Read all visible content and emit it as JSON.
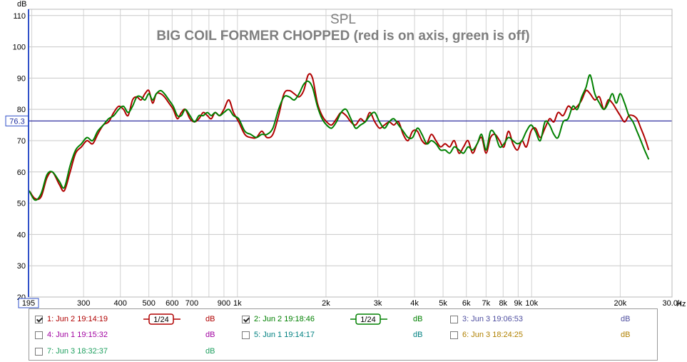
{
  "chart_data": {
    "type": "line",
    "title": "SPL",
    "subtitle": "BIG COIL FORMER CHOPPED (red is on axis, green is off)",
    "ylabel": "dB",
    "xlabel": "Hz",
    "x_scale": "log",
    "xlim": [
      195,
      30000
    ],
    "ylim": [
      20,
      112
    ],
    "grid": true,
    "y_ticks": [
      20,
      30,
      40,
      50,
      60,
      70,
      80,
      90,
      100,
      110
    ],
    "x_ticks": [
      {
        "value": 195,
        "label": "195"
      },
      {
        "value": 300,
        "label": "300"
      },
      {
        "value": 400,
        "label": "400"
      },
      {
        "value": 500,
        "label": "500"
      },
      {
        "value": 600,
        "label": "600"
      },
      {
        "value": 700,
        "label": "700"
      },
      {
        "value": 900,
        "label": "900"
      },
      {
        "value": 1000,
        "label": "1k"
      },
      {
        "value": 2000,
        "label": "2k"
      },
      {
        "value": 3000,
        "label": "3k"
      },
      {
        "value": 4000,
        "label": "4k"
      },
      {
        "value": 5000,
        "label": "5k"
      },
      {
        "value": 6000,
        "label": "6k"
      },
      {
        "value": 7000,
        "label": "7k"
      },
      {
        "value": 8000,
        "label": "8k"
      },
      {
        "value": 9000,
        "label": "9k"
      },
      {
        "value": 10000,
        "label": "10k"
      },
      {
        "value": 20000,
        "label": "20k"
      },
      {
        "value": 30000,
        "label": "30.0k"
      }
    ],
    "reference_line": {
      "value": 76.3,
      "label": "76.3",
      "color": "#00008b"
    },
    "series": [
      {
        "name": "1: Jun 2 19:14:19",
        "color": "#b00000",
        "x": [
          196,
          205,
          215,
          225,
          235,
          248,
          258,
          270,
          282,
          295,
          308,
          322,
          335,
          350,
          365,
          380,
          395,
          410,
          425,
          440,
          455,
          470,
          485,
          500,
          515,
          530,
          548,
          565,
          585,
          605,
          625,
          645,
          665,
          690,
          715,
          740,
          765,
          790,
          815,
          840,
          870,
          900,
          935,
          970,
          1010,
          1060,
          1110,
          1160,
          1210,
          1260,
          1320,
          1380,
          1440,
          1500,
          1560,
          1620,
          1680,
          1740,
          1800,
          1870,
          1940,
          2010,
          2090,
          2170,
          2250,
          2340,
          2430,
          2520,
          2620,
          2720,
          2820,
          2930,
          3040,
          3160,
          3280,
          3400,
          3530,
          3660,
          3800,
          3940,
          4090,
          4240,
          4400,
          4560,
          4730,
          4900,
          5080,
          5270,
          5460,
          5660,
          5870,
          6080,
          6300,
          6530,
          6760,
          7000,
          7250,
          7510,
          7780,
          8050,
          8340,
          8640,
          8950,
          9270,
          9600,
          9950,
          10300,
          10700,
          11100,
          11500,
          11900,
          12300,
          12800,
          13300,
          13800,
          14300,
          14800,
          15300,
          15800,
          16400,
          17000,
          17600,
          18200,
          18800,
          19400,
          20000,
          20700,
          21400,
          22100,
          22800,
          23500,
          24200,
          25000
        ],
        "y": [
          54,
          51.5,
          52,
          58,
          60,
          56,
          54,
          60,
          66,
          68,
          70,
          69,
          72,
          75,
          76,
          79,
          81,
          80,
          78,
          83,
          84,
          83,
          85,
          86,
          82,
          85,
          85,
          84,
          82,
          80,
          77,
          79,
          80,
          77,
          76,
          77,
          79,
          78,
          77,
          79,
          78,
          80,
          83,
          79,
          76,
          72,
          71,
          71,
          73,
          71,
          72,
          78,
          85,
          86,
          85,
          84,
          86,
          91,
          90,
          82,
          78,
          76,
          75,
          77,
          79,
          78,
          76,
          75,
          77,
          76,
          79,
          76,
          74,
          75,
          76,
          75,
          76,
          72,
          70,
          73,
          73,
          70,
          69,
          72,
          70,
          68,
          69,
          68,
          70,
          66,
          68,
          70,
          66,
          69,
          71,
          66,
          71,
          72,
          70,
          68,
          73,
          69,
          67,
          70,
          68,
          73,
          74,
          71,
          74,
          77,
          76,
          79,
          78,
          81,
          80,
          81,
          83,
          86,
          85,
          83,
          84,
          80,
          83,
          82,
          80,
          78,
          76,
          78,
          78,
          77,
          74,
          71,
          67
        ]
      },
      {
        "name": "2: Jun 2 19:18:46",
        "color": "#008000",
        "x": [
          196,
          205,
          215,
          225,
          235,
          248,
          258,
          270,
          282,
          295,
          308,
          322,
          335,
          350,
          365,
          380,
          395,
          410,
          425,
          440,
          455,
          470,
          485,
          500,
          515,
          530,
          548,
          565,
          585,
          605,
          625,
          645,
          665,
          690,
          715,
          740,
          765,
          790,
          815,
          840,
          870,
          900,
          935,
          970,
          1010,
          1060,
          1110,
          1160,
          1210,
          1260,
          1320,
          1380,
          1440,
          1500,
          1560,
          1620,
          1680,
          1740,
          1800,
          1870,
          1940,
          2010,
          2090,
          2170,
          2250,
          2340,
          2430,
          2520,
          2620,
          2720,
          2820,
          2930,
          3040,
          3160,
          3280,
          3400,
          3530,
          3660,
          3800,
          3940,
          4090,
          4240,
          4400,
          4560,
          4730,
          4900,
          5080,
          5270,
          5460,
          5660,
          5870,
          6080,
          6300,
          6530,
          6760,
          7000,
          7250,
          7510,
          7780,
          8050,
          8340,
          8640,
          8950,
          9270,
          9600,
          9950,
          10300,
          10700,
          11100,
          11500,
          11900,
          12300,
          12800,
          13300,
          13800,
          14300,
          14800,
          15300,
          15800,
          16400,
          17000,
          17600,
          18200,
          18800,
          19400,
          20000,
          20700,
          21400,
          22100,
          22800,
          23500,
          24200,
          25000
        ],
        "y": [
          54,
          51,
          53,
          59,
          60,
          57,
          55,
          62,
          67,
          69,
          71,
          70,
          73,
          75,
          77,
          78,
          80,
          81,
          79,
          81,
          84,
          84,
          83,
          85,
          83,
          85,
          86,
          85,
          83,
          81,
          78,
          78,
          80,
          78,
          76,
          78,
          78,
          79,
          78,
          79,
          78,
          79,
          80,
          78,
          77,
          73,
          72,
          71,
          72,
          72,
          74,
          80,
          84,
          84,
          83,
          85,
          88,
          89,
          87,
          81,
          77,
          75,
          74,
          76,
          79,
          80,
          77,
          74,
          75,
          76,
          78,
          79,
          76,
          74,
          76,
          77,
          75,
          73,
          71,
          71,
          74,
          72,
          69,
          70,
          69,
          67,
          67,
          66,
          68,
          67,
          66,
          68,
          67,
          69,
          72,
          67,
          73,
          72,
          68,
          69,
          71,
          70,
          69,
          70,
          73,
          75,
          73,
          70,
          76,
          75,
          72,
          71,
          76,
          77,
          81,
          80,
          84,
          87,
          91,
          85,
          82,
          80,
          82,
          85,
          82,
          85,
          82,
          78,
          76,
          73,
          70,
          67,
          64
        ]
      }
    ]
  },
  "legend": {
    "items": [
      {
        "label": "1: Jun 2 19:14:19",
        "checked": true,
        "color": "#b00000",
        "unit": "dB",
        "smoothing": "1/24"
      },
      {
        "label": "2: Jun 2 19:18:46",
        "checked": true,
        "color": "#008000",
        "unit": "dB",
        "smoothing": "1/24"
      },
      {
        "label": "3: Jun 3 19:06:53",
        "checked": false,
        "color": "#4f4fa0",
        "unit": "dB"
      },
      {
        "label": "4: Jun 1 19:15:32",
        "checked": false,
        "color": "#a000a0",
        "unit": "dB"
      },
      {
        "label": "5: Jun 1 19:14:17",
        "checked": false,
        "color": "#008080",
        "unit": "dB"
      },
      {
        "label": "6: Jun 3 18:24:25",
        "checked": false,
        "color": "#b08000",
        "unit": "dB"
      },
      {
        "label": "7: Jun 3 18:32:37",
        "checked": false,
        "color": "#20a060",
        "unit": "dB"
      }
    ]
  }
}
